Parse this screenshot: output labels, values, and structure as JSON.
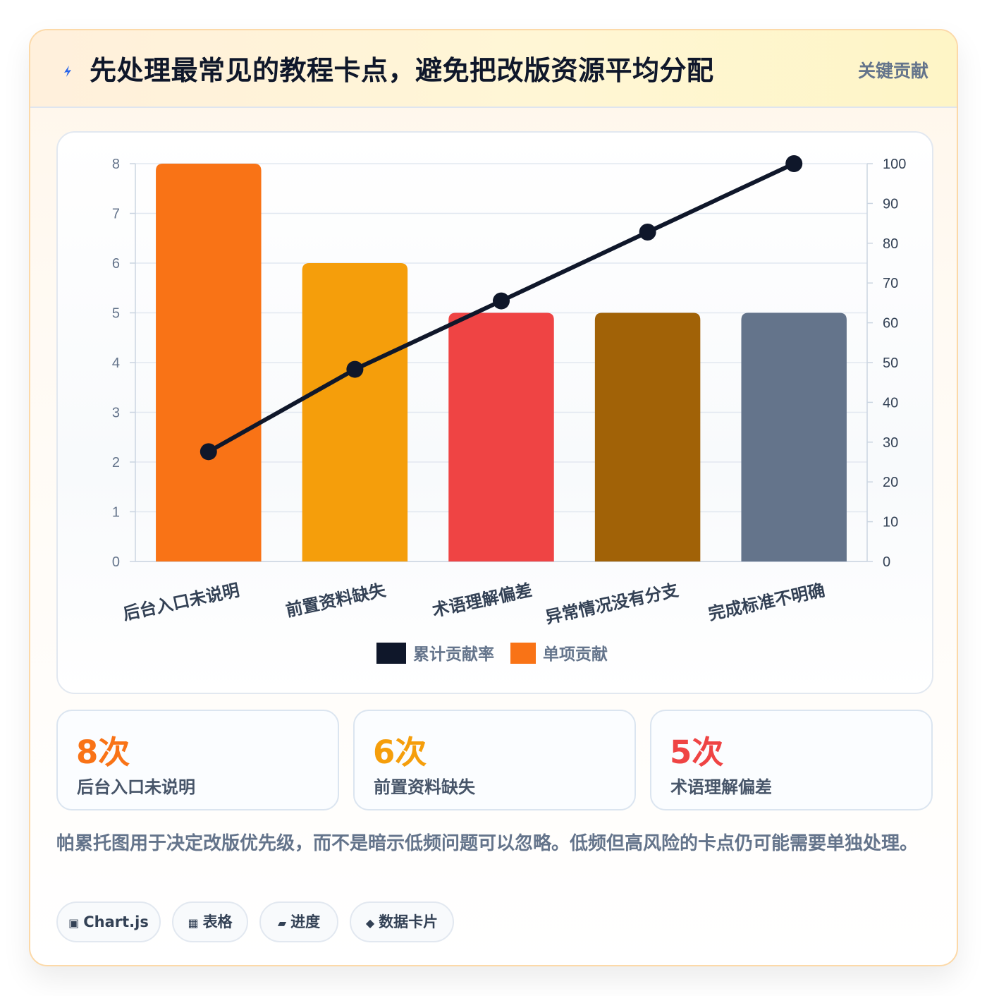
{
  "header": {
    "icon": "lightning-bolt-icon",
    "title": "先处理最常见的教程卡点，避免把改版资源平均分配",
    "tag": "关键贡献"
  },
  "chart_data": {
    "type": "bar",
    "categories": [
      "后台入口未说明",
      "前置资料缺失",
      "术语理解偏差",
      "异常情况没有分支",
      "完成标准不明确"
    ],
    "series": [
      {
        "name": "单项贡献",
        "type": "bar",
        "axis": "left",
        "values": [
          8,
          6,
          5,
          5,
          5
        ],
        "colors": [
          "#f97316",
          "#f59e0b",
          "#ef4444",
          "#a16207",
          "#64748b"
        ]
      },
      {
        "name": "累计贡献率",
        "type": "line",
        "axis": "right",
        "values": [
          27.6,
          48.3,
          65.5,
          82.8,
          100
        ],
        "color": "#0f172a"
      }
    ],
    "ylim": [
      0,
      8
    ],
    "y_ticks": [
      "0",
      "1",
      "2",
      "3",
      "4",
      "5",
      "6",
      "7",
      "8"
    ],
    "y2lim": [
      0,
      100
    ],
    "y2_ticks": [
      "0",
      "10",
      "20",
      "30",
      "40",
      "50",
      "60",
      "70",
      "80",
      "90",
      "100"
    ],
    "grid": true,
    "legend_placement": "bottom-center",
    "legend": [
      {
        "label": "累计贡献率",
        "color": "#0f172a"
      },
      {
        "label": "单项贡献",
        "color": "#f97316"
      }
    ]
  },
  "stats": [
    {
      "value": "8次",
      "label": "后台入口未说明",
      "color": "#f97316"
    },
    {
      "value": "6次",
      "label": "前置资料缺失",
      "color": "#f59e0b"
    },
    {
      "value": "5次",
      "label": "术语理解偏差",
      "color": "#ef4444"
    }
  ],
  "note": "帕累托图用于决定改版优先级，而不是暗示低频问题可以忽略。低频但高风险的卡点仍可能需要单独处理。",
  "chips": [
    {
      "icon": "▣",
      "label": "Chart.js"
    },
    {
      "icon": "▦",
      "label": "表格"
    },
    {
      "icon": "▰",
      "label": "进度"
    },
    {
      "icon": "◆",
      "label": "数据卡片"
    }
  ]
}
